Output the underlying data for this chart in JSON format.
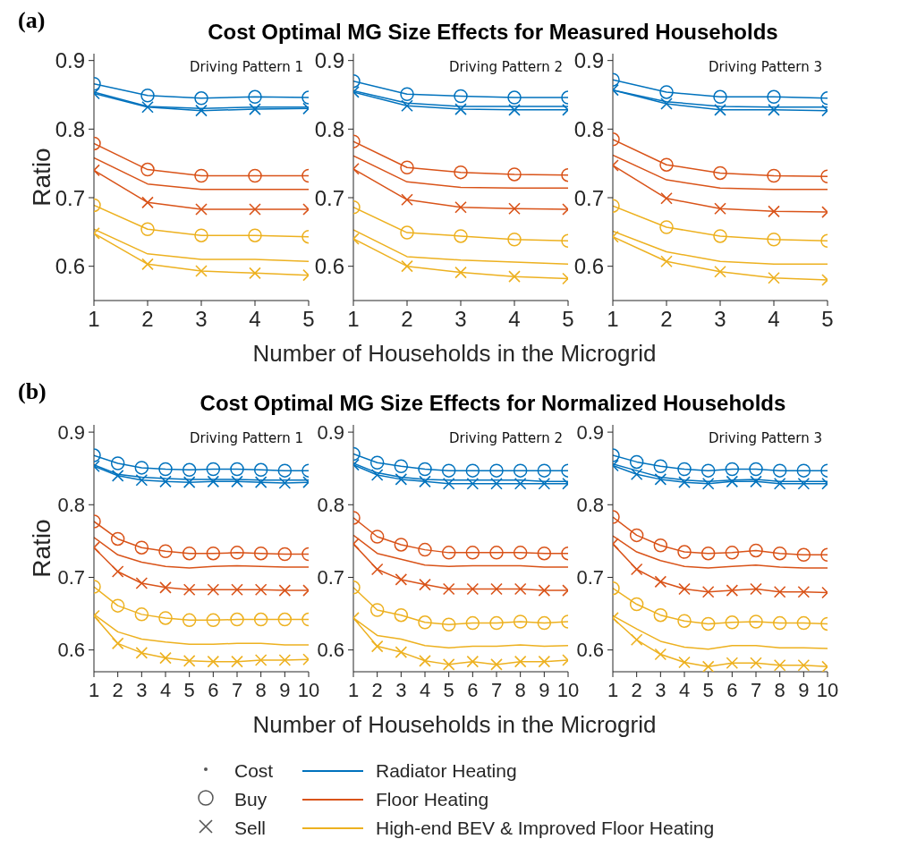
{
  "chart_data": [
    {
      "type": "line",
      "title": "Cost Optimal MG Size Effects for Measured Households",
      "ylabel": "Ratio",
      "annotations": [
        "Driving Pattern 1",
        "(a)"
      ],
      "x": [
        1,
        2,
        3,
        4,
        5
      ],
      "xlim": [
        1,
        5
      ],
      "xticks": [
        1,
        2,
        3,
        4,
        5
      ],
      "ylim": [
        0.55,
        0.91
      ],
      "yticks": [
        0.6,
        0.7,
        0.8,
        0.9
      ],
      "series": [
        {
          "color": "#0072bd",
          "marker": "none",
          "values": [
            0.854,
            0.833,
            0.83,
            0.832,
            0.832
          ]
        },
        {
          "color": "#0072bd",
          "marker": "circle",
          "values": [
            0.866,
            0.849,
            0.845,
            0.847,
            0.846
          ]
        },
        {
          "color": "#0072bd",
          "marker": "cross",
          "values": [
            0.852,
            0.832,
            0.827,
            0.829,
            0.83
          ]
        },
        {
          "color": "#d95319",
          "marker": "none",
          "values": [
            0.758,
            0.72,
            0.712,
            0.712,
            0.712
          ]
        },
        {
          "color": "#d95319",
          "marker": "circle",
          "values": [
            0.779,
            0.741,
            0.732,
            0.732,
            0.732
          ]
        },
        {
          "color": "#d95319",
          "marker": "cross",
          "values": [
            0.74,
            0.693,
            0.683,
            0.683,
            0.683
          ]
        },
        {
          "color": "#edb120",
          "marker": "none",
          "values": [
            0.654,
            0.618,
            0.61,
            0.61,
            0.607
          ]
        },
        {
          "color": "#edb120",
          "marker": "circle",
          "values": [
            0.689,
            0.654,
            0.645,
            0.645,
            0.643
          ]
        },
        {
          "color": "#edb120",
          "marker": "cross",
          "values": [
            0.648,
            0.603,
            0.593,
            0.59,
            0.587
          ]
        }
      ]
    },
    {
      "type": "line",
      "xlabel": "Number of Households in the Microgrid",
      "annotations": [
        "Driving Pattern 2"
      ],
      "x": [
        1,
        2,
        3,
        4,
        5
      ],
      "xlim": [
        1,
        5
      ],
      "xticks": [
        1,
        2,
        3,
        4,
        5
      ],
      "ylim": [
        0.55,
        0.91
      ],
      "yticks": [
        0.6,
        0.7,
        0.8,
        0.9
      ],
      "series": [
        {
          "color": "#0072bd",
          "marker": "none",
          "values": [
            0.856,
            0.838,
            0.833,
            0.833,
            0.833
          ]
        },
        {
          "color": "#0072bd",
          "marker": "circle",
          "values": [
            0.87,
            0.851,
            0.848,
            0.846,
            0.846
          ]
        },
        {
          "color": "#0072bd",
          "marker": "cross",
          "values": [
            0.854,
            0.834,
            0.829,
            0.828,
            0.828
          ]
        },
        {
          "color": "#d95319",
          "marker": "none",
          "values": [
            0.761,
            0.723,
            0.715,
            0.714,
            0.714
          ]
        },
        {
          "color": "#d95319",
          "marker": "circle",
          "values": [
            0.782,
            0.744,
            0.737,
            0.734,
            0.733
          ]
        },
        {
          "color": "#d95319",
          "marker": "cross",
          "values": [
            0.742,
            0.697,
            0.686,
            0.684,
            0.683
          ]
        },
        {
          "color": "#edb120",
          "marker": "none",
          "values": [
            0.653,
            0.614,
            0.609,
            0.606,
            0.603
          ]
        },
        {
          "color": "#edb120",
          "marker": "circle",
          "values": [
            0.686,
            0.649,
            0.644,
            0.639,
            0.637
          ]
        },
        {
          "color": "#edb120",
          "marker": "cross",
          "values": [
            0.64,
            0.6,
            0.591,
            0.585,
            0.582
          ]
        }
      ]
    },
    {
      "type": "line",
      "annotations": [
        "Driving Pattern 3"
      ],
      "x": [
        1,
        2,
        3,
        4,
        5
      ],
      "xlim": [
        1,
        5
      ],
      "xticks": [
        1,
        2,
        3,
        4,
        5
      ],
      "ylim": [
        0.55,
        0.91
      ],
      "yticks": [
        0.6,
        0.7,
        0.8,
        0.9
      ],
      "series": [
        {
          "color": "#0072bd",
          "marker": "none",
          "values": [
            0.857,
            0.84,
            0.833,
            0.832,
            0.832
          ]
        },
        {
          "color": "#0072bd",
          "marker": "circle",
          "values": [
            0.872,
            0.854,
            0.847,
            0.847,
            0.845
          ]
        },
        {
          "color": "#0072bd",
          "marker": "cross",
          "values": [
            0.857,
            0.837,
            0.828,
            0.828,
            0.827
          ]
        },
        {
          "color": "#d95319",
          "marker": "none",
          "values": [
            0.762,
            0.726,
            0.714,
            0.712,
            0.712
          ]
        },
        {
          "color": "#d95319",
          "marker": "circle",
          "values": [
            0.785,
            0.748,
            0.736,
            0.732,
            0.731
          ]
        },
        {
          "color": "#d95319",
          "marker": "cross",
          "values": [
            0.747,
            0.699,
            0.684,
            0.68,
            0.679
          ]
        },
        {
          "color": "#edb120",
          "marker": "none",
          "values": [
            0.651,
            0.621,
            0.607,
            0.603,
            0.603
          ]
        },
        {
          "color": "#edb120",
          "marker": "circle",
          "values": [
            0.688,
            0.657,
            0.644,
            0.639,
            0.637
          ]
        },
        {
          "color": "#edb120",
          "marker": "cross",
          "values": [
            0.643,
            0.607,
            0.592,
            0.583,
            0.58
          ]
        }
      ]
    },
    {
      "type": "line",
      "title": "Cost Optimal MG Size Effects for Normalized Households",
      "ylabel": "Ratio",
      "annotations": [
        "Driving Pattern 1",
        "(b)"
      ],
      "x": [
        1,
        2,
        3,
        4,
        5,
        6,
        7,
        8,
        9,
        10
      ],
      "xlim": [
        1,
        10
      ],
      "xticks": [
        1,
        2,
        3,
        4,
        5,
        6,
        7,
        8,
        9,
        10
      ],
      "ylim": [
        0.57,
        0.91
      ],
      "yticks": [
        0.6,
        0.7,
        0.8,
        0.9
      ],
      "series": [
        {
          "color": "#0072bd",
          "marker": "none",
          "values": [
            0.855,
            0.842,
            0.838,
            0.836,
            0.835,
            0.835,
            0.835,
            0.834,
            0.834,
            0.834
          ]
        },
        {
          "color": "#0072bd",
          "marker": "circle",
          "values": [
            0.868,
            0.857,
            0.851,
            0.849,
            0.848,
            0.849,
            0.849,
            0.848,
            0.847,
            0.847
          ]
        },
        {
          "color": "#0072bd",
          "marker": "cross",
          "values": [
            0.853,
            0.84,
            0.834,
            0.832,
            0.831,
            0.832,
            0.832,
            0.831,
            0.83,
            0.831
          ]
        },
        {
          "color": "#d95319",
          "marker": "none",
          "values": [
            0.755,
            0.731,
            0.721,
            0.715,
            0.713,
            0.715,
            0.716,
            0.715,
            0.714,
            0.714
          ]
        },
        {
          "color": "#d95319",
          "marker": "circle",
          "values": [
            0.777,
            0.753,
            0.741,
            0.736,
            0.733,
            0.733,
            0.734,
            0.733,
            0.732,
            0.732
          ]
        },
        {
          "color": "#d95319",
          "marker": "cross",
          "values": [
            0.741,
            0.708,
            0.692,
            0.686,
            0.683,
            0.683,
            0.683,
            0.683,
            0.682,
            0.682
          ]
        },
        {
          "color": "#edb120",
          "marker": "none",
          "values": [
            0.649,
            0.625,
            0.615,
            0.611,
            0.608,
            0.608,
            0.609,
            0.609,
            0.607,
            0.607
          ]
        },
        {
          "color": "#edb120",
          "marker": "circle",
          "values": [
            0.687,
            0.661,
            0.649,
            0.644,
            0.641,
            0.641,
            0.642,
            0.642,
            0.642,
            0.642
          ]
        },
        {
          "color": "#edb120",
          "marker": "cross",
          "values": [
            0.647,
            0.609,
            0.596,
            0.589,
            0.585,
            0.584,
            0.584,
            0.586,
            0.586,
            0.587
          ]
        }
      ]
    },
    {
      "type": "line",
      "xlabel": "Number of Households in the Microgrid",
      "annotations": [
        "Driving Pattern 2"
      ],
      "x": [
        1,
        2,
        3,
        4,
        5,
        6,
        7,
        8,
        9,
        10
      ],
      "xlim": [
        1,
        10
      ],
      "xticks": [
        1,
        2,
        3,
        4,
        5,
        6,
        7,
        8,
        9,
        10
      ],
      "ylim": [
        0.57,
        0.91
      ],
      "yticks": [
        0.6,
        0.7,
        0.8,
        0.9
      ],
      "series": [
        {
          "color": "#0072bd",
          "marker": "none",
          "values": [
            0.857,
            0.844,
            0.838,
            0.835,
            0.834,
            0.834,
            0.834,
            0.834,
            0.832,
            0.832
          ]
        },
        {
          "color": "#0072bd",
          "marker": "circle",
          "values": [
            0.87,
            0.858,
            0.853,
            0.849,
            0.847,
            0.847,
            0.847,
            0.847,
            0.847,
            0.847
          ]
        },
        {
          "color": "#0072bd",
          "marker": "cross",
          "values": [
            0.855,
            0.841,
            0.835,
            0.832,
            0.829,
            0.829,
            0.829,
            0.829,
            0.829,
            0.829
          ]
        },
        {
          "color": "#d95319",
          "marker": "none",
          "values": [
            0.758,
            0.733,
            0.725,
            0.717,
            0.715,
            0.716,
            0.716,
            0.716,
            0.714,
            0.714
          ]
        },
        {
          "color": "#d95319",
          "marker": "circle",
          "values": [
            0.782,
            0.756,
            0.745,
            0.738,
            0.734,
            0.734,
            0.734,
            0.734,
            0.733,
            0.733
          ]
        },
        {
          "color": "#d95319",
          "marker": "cross",
          "values": [
            0.746,
            0.711,
            0.697,
            0.69,
            0.684,
            0.684,
            0.684,
            0.684,
            0.682,
            0.682
          ]
        },
        {
          "color": "#edb120",
          "marker": "none",
          "values": [
            0.644,
            0.62,
            0.615,
            0.606,
            0.603,
            0.605,
            0.605,
            0.607,
            0.605,
            0.606
          ]
        },
        {
          "color": "#edb120",
          "marker": "circle",
          "values": [
            0.686,
            0.655,
            0.648,
            0.638,
            0.635,
            0.637,
            0.637,
            0.639,
            0.637,
            0.639
          ]
        },
        {
          "color": "#edb120",
          "marker": "cross",
          "values": [
            0.644,
            0.605,
            0.597,
            0.585,
            0.58,
            0.584,
            0.58,
            0.584,
            0.584,
            0.586
          ]
        }
      ]
    },
    {
      "type": "line",
      "legend": "bottom",
      "annotations": [
        "Driving Pattern 3",
        "Cost",
        "Buy",
        "Sell"
      ],
      "x": [
        1,
        2,
        3,
        4,
        5,
        6,
        7,
        8,
        9,
        10
      ],
      "xlim": [
        1,
        10
      ],
      "xticks": [
        1,
        2,
        3,
        4,
        5,
        6,
        7,
        8,
        9,
        10
      ],
      "ylim": [
        0.57,
        0.91
      ],
      "yticks": [
        0.6,
        0.7,
        0.8,
        0.9
      ],
      "series": [
        {
          "name": "Radiator Heating",
          "color": "#0072bd",
          "marker": "none",
          "values": [
            0.856,
            0.847,
            0.838,
            0.834,
            0.832,
            0.834,
            0.835,
            0.832,
            0.832,
            0.832
          ]
        },
        {
          "color": "#0072bd",
          "marker": "circle",
          "values": [
            0.868,
            0.859,
            0.853,
            0.849,
            0.847,
            0.849,
            0.849,
            0.847,
            0.847,
            0.847
          ]
        },
        {
          "color": "#0072bd",
          "marker": "cross",
          "values": [
            0.854,
            0.842,
            0.835,
            0.831,
            0.829,
            0.832,
            0.832,
            0.829,
            0.829,
            0.829
          ]
        },
        {
          "name": "Floor Heating",
          "color": "#d95319",
          "marker": "none",
          "values": [
            0.757,
            0.735,
            0.723,
            0.715,
            0.713,
            0.715,
            0.717,
            0.714,
            0.713,
            0.713
          ]
        },
        {
          "color": "#d95319",
          "marker": "circle",
          "values": [
            0.783,
            0.758,
            0.744,
            0.735,
            0.733,
            0.734,
            0.737,
            0.733,
            0.731,
            0.731
          ]
        },
        {
          "color": "#d95319",
          "marker": "cross",
          "values": [
            0.746,
            0.711,
            0.694,
            0.684,
            0.68,
            0.682,
            0.684,
            0.68,
            0.68,
            0.679
          ]
        },
        {
          "name": "High-end BEV & Improved Floor Heating",
          "color": "#edb120",
          "marker": "none",
          "values": [
            0.647,
            0.629,
            0.612,
            0.604,
            0.601,
            0.606,
            0.606,
            0.603,
            0.603,
            0.602
          ]
        },
        {
          "color": "#edb120",
          "marker": "circle",
          "values": [
            0.685,
            0.663,
            0.648,
            0.64,
            0.636,
            0.638,
            0.639,
            0.637,
            0.637,
            0.636
          ]
        },
        {
          "color": "#edb120",
          "marker": "cross",
          "values": [
            0.644,
            0.614,
            0.594,
            0.583,
            0.577,
            0.582,
            0.582,
            0.579,
            0.579,
            0.577
          ]
        }
      ]
    }
  ]
}
